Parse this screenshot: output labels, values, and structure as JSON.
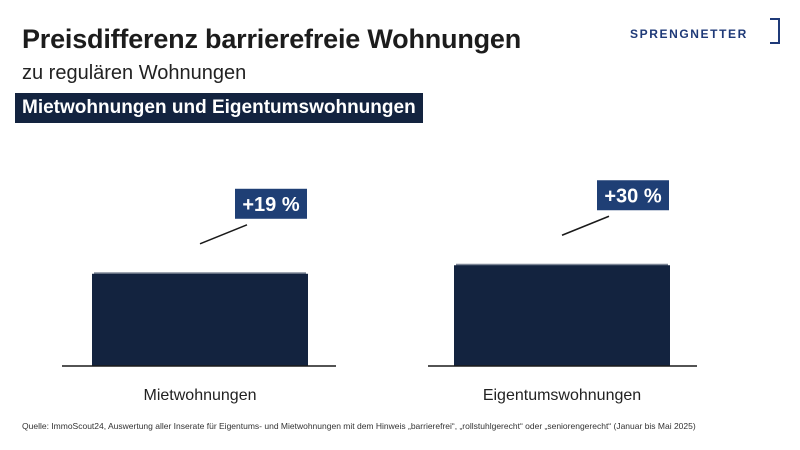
{
  "header": {
    "title": "Preisdifferenz barrierefreie Wohnungen",
    "subtitle": "zu regulären Wohnungen",
    "badge": "Mietwohnungen und Eigentumswohnungen"
  },
  "logo": {
    "text": "SPRENGNETTER"
  },
  "colors": {
    "bar": "#13233f",
    "label_box": "#1f3f75",
    "baseline": "#1a1a1a",
    "brand": "#1f3a78"
  },
  "chart_data": {
    "type": "bar",
    "categories": [
      "Mietwohnungen",
      "Eigentumswohnungen"
    ],
    "values": [
      119,
      130
    ],
    "data_labels": [
      "+19 %",
      "+30 %"
    ],
    "title": "",
    "xlabel": "",
    "ylabel": "",
    "ylim": [
      0,
      200
    ],
    "grid": false,
    "legend": "none"
  },
  "footer": {
    "source": "Quelle: ImmoScout24, Auswertung aller Inserate für Eigentums- und Mietwohnungen mit dem Hinweis „barrierefrei“, „rollstuhlgerecht“ oder „seniorengerecht“ (Januar bis Mai 2025)"
  }
}
